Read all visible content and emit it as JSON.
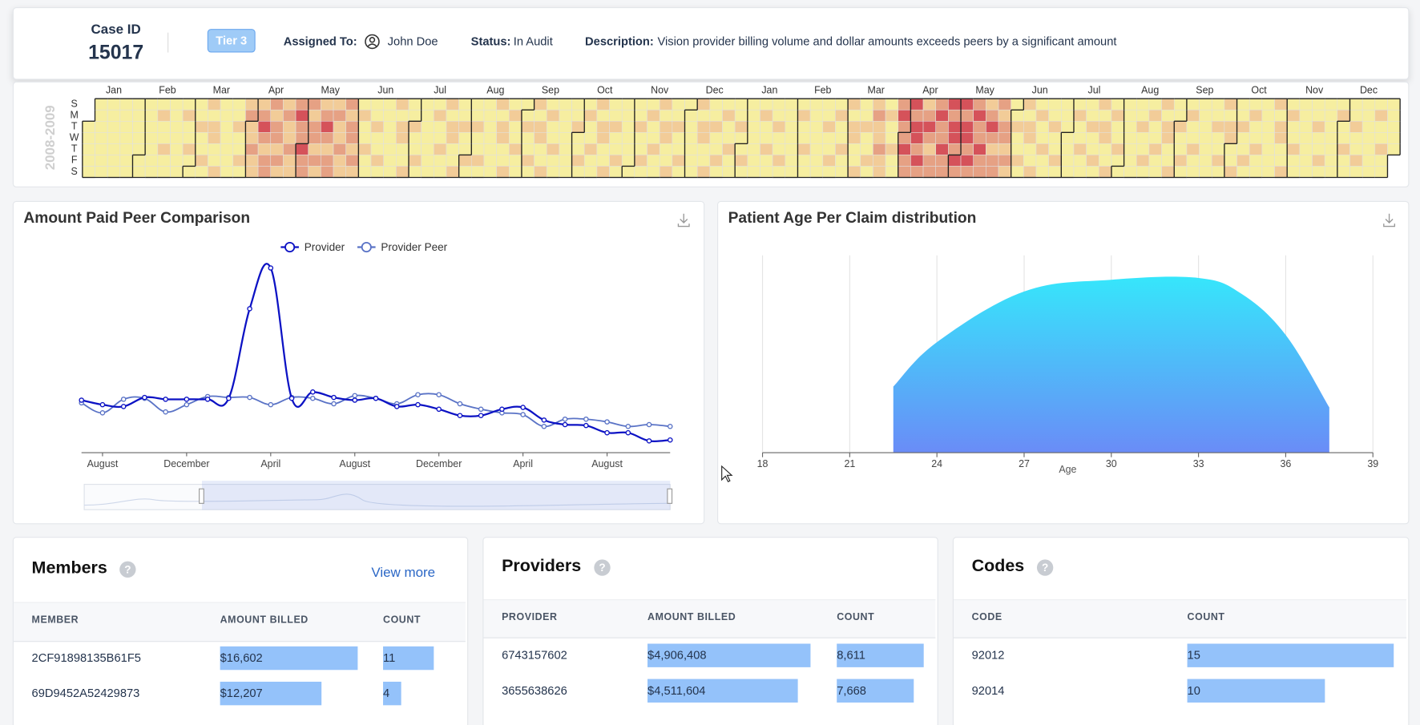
{
  "header": {
    "case_id_label": "Case ID",
    "case_id": "15017",
    "tier": "Tier 3",
    "assigned_label": "Assigned To:",
    "assigned": "John Doe",
    "status_label": "Status:",
    "status": "In Audit",
    "description_label": "Description:",
    "description": "Vision provider billing volume and dollar amounts exceeds peers by a significant amount"
  },
  "chart_data": [
    {
      "type": "heatmap",
      "year_label": "2008-2009",
      "day_labels": [
        "S",
        "M",
        "T",
        "W",
        "T",
        "F",
        "S"
      ],
      "month_labels": [
        "Jan",
        "Feb",
        "Mar",
        "Apr",
        "May",
        "Jun",
        "Jul",
        "Aug",
        "Sep",
        "Oct",
        "Nov",
        "Dec",
        "Jan",
        "Feb",
        "Mar",
        "Apr",
        "May",
        "Jun",
        "Jul",
        "Aug",
        "Sep",
        "Oct",
        "Nov",
        "Dec"
      ],
      "colors": [
        "#f6eea0",
        "#f2cc98",
        "#e6a184",
        "#d5525a"
      ],
      "weeks": [
        [
          null,
          null,
          0,
          0,
          0,
          0,
          0
        ],
        [
          0,
          0,
          0,
          0,
          0,
          0,
          0
        ],
        [
          0,
          0,
          0,
          0,
          0,
          0,
          0
        ],
        [
          0,
          0,
          0,
          0,
          0,
          0,
          0
        ],
        [
          0,
          0,
          0,
          0,
          0,
          0,
          0
        ],
        [
          0,
          0,
          0,
          0,
          0,
          0,
          0
        ],
        [
          0,
          1,
          0,
          0,
          1,
          0,
          0
        ],
        [
          0,
          0,
          0,
          0,
          0,
          0,
          0
        ],
        [
          0,
          1,
          0,
          0,
          1,
          0,
          0
        ],
        [
          0,
          0,
          1,
          0,
          0,
          1,
          0
        ],
        [
          1,
          0,
          1,
          1,
          0,
          0,
          1
        ],
        [
          0,
          0,
          0,
          0,
          0,
          0,
          0
        ],
        [
          0,
          0,
          1,
          0,
          0,
          1,
          0
        ],
        [
          1,
          2,
          1,
          1,
          2,
          1,
          1
        ],
        [
          1,
          2,
          3,
          2,
          1,
          2,
          2
        ],
        [
          2,
          1,
          2,
          2,
          1,
          2,
          1
        ],
        [
          1,
          2,
          1,
          1,
          2,
          1,
          1
        ],
        [
          2,
          3,
          2,
          2,
          3,
          2,
          2
        ],
        [
          2,
          1,
          2,
          2,
          1,
          2,
          1
        ],
        [
          1,
          2,
          3,
          2,
          1,
          2,
          2
        ],
        [
          1,
          2,
          1,
          1,
          2,
          1,
          1
        ],
        [
          2,
          1,
          2,
          2,
          1,
          2,
          1
        ],
        [
          0,
          1,
          0,
          0,
          1,
          0,
          0
        ],
        [
          0,
          0,
          1,
          0,
          0,
          1,
          0
        ],
        [
          0,
          0,
          0,
          0,
          0,
          0,
          0
        ],
        [
          1,
          0,
          1,
          1,
          0,
          0,
          1
        ],
        [
          0,
          0,
          1,
          0,
          0,
          1,
          0
        ],
        [
          0,
          0,
          0,
          0,
          0,
          0,
          0
        ],
        [
          0,
          1,
          0,
          0,
          1,
          0,
          0
        ],
        [
          1,
          0,
          1,
          1,
          0,
          0,
          1
        ],
        [
          0,
          0,
          1,
          0,
          0,
          1,
          0
        ],
        [
          0,
          0,
          1,
          0,
          0,
          1,
          0
        ],
        [
          0,
          0,
          0,
          0,
          0,
          0,
          0
        ],
        [
          1,
          0,
          1,
          1,
          0,
          0,
          1
        ],
        [
          0,
          1,
          0,
          0,
          1,
          0,
          0
        ],
        [
          0,
          0,
          1,
          0,
          0,
          1,
          0
        ],
        [
          1,
          0,
          1,
          1,
          0,
          0,
          1
        ],
        [
          0,
          1,
          0,
          0,
          1,
          0,
          0
        ],
        [
          0,
          0,
          0,
          0,
          0,
          0,
          0
        ],
        [
          0,
          0,
          1,
          0,
          0,
          1,
          0
        ],
        [
          0,
          1,
          0,
          0,
          1,
          0,
          0
        ],
        [
          1,
          0,
          1,
          1,
          0,
          0,
          1
        ],
        [
          0,
          0,
          1,
          0,
          0,
          1,
          0
        ],
        [
          0,
          0,
          0,
          0,
          0,
          0,
          0
        ],
        [
          0,
          0,
          1,
          0,
          0,
          1,
          0
        ],
        [
          0,
          1,
          0,
          0,
          1,
          0,
          0
        ],
        [
          1,
          0,
          1,
          1,
          0,
          0,
          1
        ],
        [
          0,
          0,
          1,
          0,
          0,
          1,
          0
        ],
        [
          0,
          0,
          0,
          0,
          0,
          0,
          0
        ],
        [
          1,
          0,
          1,
          1,
          0,
          0,
          1
        ],
        [
          0,
          0,
          1,
          0,
          0,
          1,
          0
        ],
        [
          0,
          1,
          0,
          0,
          1,
          0,
          0
        ],
        [
          0,
          0,
          1,
          0,
          0,
          1,
          0
        ],
        [
          0,
          0,
          0,
          0,
          0,
          0,
          0
        ],
        [
          0,
          1,
          0,
          0,
          1,
          0,
          0
        ],
        [
          0,
          0,
          1,
          0,
          0,
          1,
          0
        ],
        [
          0,
          0,
          0,
          0,
          0,
          0,
          0
        ],
        [
          0,
          1,
          0,
          0,
          1,
          0,
          0
        ],
        [
          0,
          0,
          0,
          0,
          0,
          0,
          0
        ],
        [
          0,
          0,
          1,
          0,
          0,
          1,
          0
        ],
        [
          0,
          1,
          0,
          0,
          1,
          0,
          0
        ],
        [
          1,
          0,
          1,
          1,
          0,
          0,
          1
        ],
        [
          0,
          0,
          1,
          0,
          0,
          1,
          0
        ],
        [
          1,
          2,
          1,
          1,
          2,
          1,
          1
        ],
        [
          0,
          1,
          0,
          0,
          1,
          0,
          0
        ],
        [
          2,
          3,
          2,
          2,
          3,
          2,
          2
        ],
        [
          3,
          2,
          3,
          3,
          2,
          3,
          2
        ],
        [
          1,
          2,
          3,
          2,
          1,
          2,
          2
        ],
        [
          2,
          3,
          2,
          2,
          3,
          2,
          2
        ],
        [
          3,
          2,
          3,
          3,
          2,
          3,
          2
        ],
        [
          3,
          2,
          3,
          3,
          2,
          3,
          2
        ],
        [
          2,
          3,
          2,
          2,
          3,
          2,
          2
        ],
        [
          1,
          2,
          3,
          2,
          1,
          2,
          2
        ],
        [
          2,
          1,
          2,
          2,
          1,
          2,
          1
        ],
        [
          0,
          0,
          1,
          0,
          0,
          1,
          0
        ],
        [
          1,
          0,
          1,
          1,
          0,
          0,
          1
        ],
        [
          0,
          1,
          0,
          0,
          1,
          0,
          0
        ],
        [
          0,
          0,
          1,
          0,
          0,
          1,
          0
        ],
        [
          0,
          0,
          0,
          0,
          0,
          0,
          0
        ],
        [
          0,
          1,
          0,
          0,
          1,
          0,
          0
        ],
        [
          0,
          0,
          1,
          0,
          0,
          1,
          0
        ],
        [
          1,
          0,
          1,
          1,
          0,
          0,
          1
        ],
        [
          0,
          1,
          0,
          0,
          1,
          0,
          0
        ],
        [
          0,
          0,
          0,
          0,
          0,
          0,
          0
        ],
        [
          0,
          0,
          1,
          0,
          0,
          1,
          0
        ],
        [
          0,
          1,
          0,
          0,
          1,
          0,
          0
        ],
        [
          1,
          0,
          1,
          1,
          0,
          0,
          1
        ],
        [
          0,
          0,
          1,
          0,
          0,
          1,
          0
        ],
        [
          0,
          1,
          0,
          0,
          1,
          0,
          0
        ],
        [
          0,
          0,
          0,
          0,
          0,
          0,
          0
        ],
        [
          0,
          0,
          1,
          0,
          0,
          1,
          0
        ],
        [
          1,
          0,
          1,
          1,
          0,
          0,
          1
        ],
        [
          0,
          0,
          1,
          0,
          0,
          1,
          0
        ],
        [
          0,
          1,
          0,
          0,
          1,
          0,
          0
        ],
        [
          0,
          0,
          0,
          0,
          0,
          0,
          0
        ],
        [
          1,
          0,
          1,
          1,
          0,
          0,
          1
        ],
        [
          0,
          1,
          0,
          0,
          1,
          0,
          0
        ],
        [
          0,
          0,
          0,
          0,
          0,
          0,
          0
        ],
        [
          0,
          0,
          1,
          0,
          0,
          1,
          0
        ],
        [
          0,
          0,
          0,
          0,
          0,
          0,
          0
        ],
        [
          0,
          1,
          0,
          0,
          1,
          0,
          0
        ],
        [
          0,
          0,
          1,
          0,
          0,
          1,
          0
        ],
        [
          0,
          0,
          0,
          0,
          0,
          0,
          0
        ],
        [
          0,
          1,
          0,
          0,
          1,
          0,
          0
        ],
        [
          0,
          0,
          0,
          0,
          0,
          null,
          null
        ]
      ]
    },
    {
      "type": "line",
      "title": "Amount Paid Peer Comparison",
      "legend": "top",
      "categories": [
        null,
        "August",
        null,
        null,
        null,
        "December",
        null,
        null,
        null,
        "April",
        null,
        null,
        null,
        "August",
        null,
        null,
        null,
        "December",
        null,
        null,
        null,
        "April",
        null,
        null,
        null,
        "August",
        null,
        null,
        null
      ],
      "ylim": [
        0,
        210
      ],
      "series": [
        {
          "name": "Provider",
          "color": "#0c12c4",
          "values": [
            58,
            53,
            51,
            61,
            59,
            59,
            59,
            60,
            159,
            204,
            60,
            67,
            61,
            58,
            60,
            51,
            53,
            48,
            41,
            41,
            48,
            50,
            36,
            31,
            30,
            22,
            22,
            13,
            14
          ]
        },
        {
          "name": "Provider Peer",
          "color": "#5a73c6",
          "values": [
            55,
            44,
            59,
            60,
            45,
            53,
            62,
            61,
            61,
            53,
            61,
            60,
            54,
            63,
            60,
            54,
            64,
            64,
            54,
            48,
            44,
            42,
            29,
            37,
            37,
            34,
            29,
            31,
            29
          ]
        }
      ]
    },
    {
      "type": "area",
      "title": "Patient Age Per Claim distribution",
      "x_label": "Age",
      "x": [
        22.5,
        24,
        27,
        30,
        33,
        34.5,
        36,
        37.5
      ],
      "values": [
        73,
        122,
        178,
        191,
        193,
        175,
        130,
        50
      ],
      "xlim": [
        18,
        39
      ],
      "xticks": [
        18,
        21,
        24,
        27,
        30,
        33,
        36,
        39
      ],
      "ylim": [
        0,
        218
      ],
      "grid": "x",
      "colors": [
        "#36e6fb",
        "#6a8cf7"
      ]
    }
  ],
  "members": {
    "title": "Members",
    "help": "?",
    "link": "View more",
    "columns": [
      "MEMBER",
      "AMOUNT BILLED",
      "COUNT"
    ],
    "rows": [
      {
        "id": "2CF91898135B61F5",
        "amount": 16602,
        "amount_label": "$16,602",
        "count": 11
      },
      {
        "id": "69D9452A52429873",
        "amount": 12207,
        "amount_label": "$12,207",
        "count": 4
      }
    ]
  },
  "providers": {
    "title": "Providers",
    "help": "?",
    "columns": [
      "PROVIDER",
      "AMOUNT BILLED",
      "COUNT"
    ],
    "rows": [
      {
        "id": "6743157602",
        "amount": 4906408,
        "amount_label": "$4,906,408",
        "count": 8611,
        "count_label": "8,611"
      },
      {
        "id": "3655638626",
        "amount": 4511604,
        "amount_label": "$4,511,604",
        "count": 7668,
        "count_label": "7,668"
      }
    ]
  },
  "codes": {
    "title": "Codes",
    "help": "?",
    "columns": [
      "CODE",
      "COUNT"
    ],
    "rows": [
      {
        "id": "92012",
        "count": 15
      },
      {
        "id": "92014",
        "count": 10
      }
    ]
  }
}
